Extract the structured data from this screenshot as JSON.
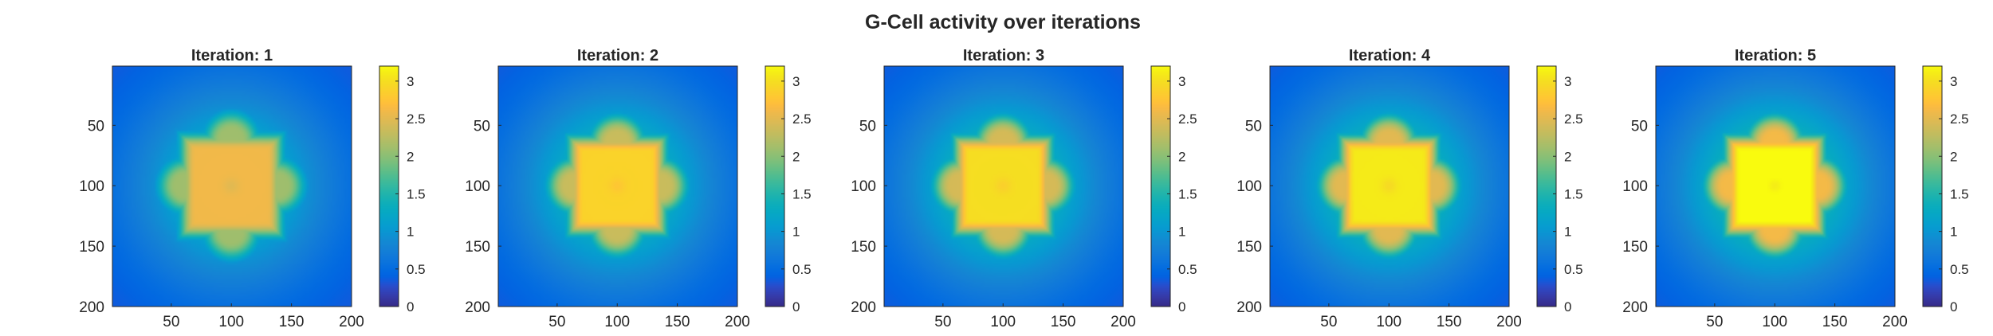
{
  "figure": {
    "title": "G-Cell activity over iterations"
  },
  "chart_data": [
    {
      "type": "heatmap",
      "title": "Iteration: 1",
      "x_range": [
        1,
        200
      ],
      "y_range": [
        1,
        200
      ],
      "y_direction": "reverse",
      "x_ticks": [
        50,
        100,
        150,
        200
      ],
      "y_ticks": [
        50,
        100,
        150,
        200
      ],
      "grid": false,
      "colormap": "parula",
      "color_limits": [
        0,
        3.2
      ],
      "colorbar_ticks": [
        0,
        0.5,
        1,
        1.5,
        2,
        2.5,
        3
      ],
      "colorbar_labels": [
        "0",
        "0.5",
        "1",
        "1.5",
        "2",
        "2.5",
        "3"
      ],
      "center": [
        100,
        100
      ],
      "center_square_halfwidth": 30,
      "lobe_offset": 38,
      "lobe_radius": 22,
      "peak_value": 2.45,
      "background_value": 0.25
    },
    {
      "type": "heatmap",
      "title": "Iteration: 2",
      "x_range": [
        1,
        200
      ],
      "y_range": [
        1,
        200
      ],
      "y_direction": "reverse",
      "x_ticks": [
        50,
        100,
        150,
        200
      ],
      "y_ticks": [
        50,
        100,
        150,
        200
      ],
      "grid": false,
      "colormap": "parula",
      "color_limits": [
        0,
        3.2
      ],
      "colorbar_ticks": [
        0,
        0.5,
        1,
        1.5,
        2,
        2.5,
        3
      ],
      "colorbar_labels": [
        "0",
        "0.5",
        "1",
        "1.5",
        "2",
        "2.5",
        "3"
      ],
      "center": [
        100,
        100
      ],
      "center_square_halfwidth": 28,
      "lobe_offset": 35,
      "lobe_radius": 22,
      "peak_value": 2.75,
      "background_value": 0.25
    },
    {
      "type": "heatmap",
      "title": "Iteration: 3",
      "x_range": [
        1,
        200
      ],
      "y_range": [
        1,
        200
      ],
      "y_direction": "reverse",
      "x_ticks": [
        50,
        100,
        150,
        200
      ],
      "y_ticks": [
        50,
        100,
        150,
        200
      ],
      "grid": false,
      "colormap": "parula",
      "color_limits": [
        0,
        3.2
      ],
      "colorbar_ticks": [
        0,
        0.5,
        1,
        1.5,
        2,
        2.5,
        3
      ],
      "colorbar_labels": [
        "0",
        "0.5",
        "1",
        "1.5",
        "2",
        "2.5",
        "3"
      ],
      "center": [
        100,
        100
      ],
      "center_square_halfwidth": 28,
      "lobe_offset": 35,
      "lobe_radius": 22,
      "peak_value": 2.85,
      "background_value": 0.25
    },
    {
      "type": "heatmap",
      "title": "Iteration: 4",
      "x_range": [
        1,
        200
      ],
      "y_range": [
        1,
        200
      ],
      "y_direction": "reverse",
      "x_ticks": [
        50,
        100,
        150,
        200
      ],
      "y_ticks": [
        50,
        100,
        150,
        200
      ],
      "grid": false,
      "colormap": "parula",
      "color_limits": [
        0,
        3.2
      ],
      "colorbar_ticks": [
        0,
        0.5,
        1,
        1.5,
        2,
        2.5,
        3
      ],
      "colorbar_labels": [
        "0",
        "0.5",
        "1",
        "1.5",
        "2",
        "2.5",
        "3"
      ],
      "center": [
        100,
        100
      ],
      "center_square_halfwidth": 28,
      "lobe_offset": 35,
      "lobe_radius": 22,
      "peak_value": 2.95,
      "background_value": 0.25
    },
    {
      "type": "heatmap",
      "title": "Iteration: 5",
      "x_range": [
        1,
        200
      ],
      "y_range": [
        1,
        200
      ],
      "y_direction": "reverse",
      "x_ticks": [
        50,
        100,
        150,
        200
      ],
      "y_ticks": [
        50,
        100,
        150,
        200
      ],
      "grid": false,
      "colormap": "parula",
      "color_limits": [
        0,
        3.2
      ],
      "colorbar_ticks": [
        0,
        0.5,
        1,
        1.5,
        2,
        2.5,
        3
      ],
      "colorbar_labels": [
        "0",
        "0.5",
        "1",
        "1.5",
        "2",
        "2.5",
        "3"
      ],
      "center": [
        100,
        100
      ],
      "center_square_halfwidth": 28,
      "lobe_offset": 35,
      "lobe_radius": 22,
      "peak_value": 3.1,
      "background_value": 0.25
    }
  ]
}
